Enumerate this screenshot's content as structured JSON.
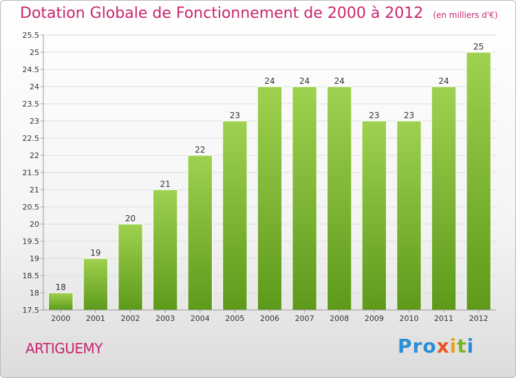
{
  "title": "Dotation Globale de Fonctionnement de 2000 à 2012",
  "unit": "(en milliers d'€)",
  "commune": "ARTIGUEMY",
  "logo": {
    "text": "Proxiti",
    "letters": [
      {
        "ch": "P",
        "color": "#2a8fd6"
      },
      {
        "ch": "r",
        "color": "#2a8fd6"
      },
      {
        "ch": "o",
        "color": "#2a8fd6"
      },
      {
        "ch": "x",
        "color": "#e8531f"
      },
      {
        "ch": "i",
        "color": "#e8a31f"
      },
      {
        "ch": "t",
        "color": "#7ab52a"
      },
      {
        "ch": "i",
        "color": "#2a8fd6"
      }
    ]
  },
  "colors": {
    "bar_top": "#9fd150",
    "bar_bottom": "#5e9a1a",
    "accent": "#c8256f"
  },
  "chart_data": {
    "type": "bar",
    "categories": [
      "2000",
      "2001",
      "2002",
      "2003",
      "2004",
      "2005",
      "2006",
      "2007",
      "2008",
      "2009",
      "2010",
      "2011",
      "2012"
    ],
    "values": [
      18,
      19,
      20,
      21,
      22,
      23,
      24,
      24,
      24,
      23,
      23,
      24,
      25
    ],
    "data_labels": [
      "18",
      "19",
      "20",
      "21",
      "22",
      "23",
      "24",
      "24",
      "24",
      "23",
      "23",
      "24",
      "25"
    ],
    "ylim": [
      17.5,
      25.5
    ],
    "yticks": [
      17.5,
      18,
      18.5,
      19,
      19.5,
      20,
      20.5,
      21,
      21.5,
      22,
      22.5,
      23,
      23.5,
      24,
      24.5,
      25,
      25.5
    ],
    "ytick_labels": [
      "17.5",
      "18",
      "18.5",
      "19",
      "19.5",
      "20",
      "20.5",
      "21",
      "21.5",
      "22",
      "22.5",
      "23",
      "23.5",
      "24",
      "24.5",
      "25",
      "25.5"
    ],
    "grid": true,
    "legend": false
  }
}
